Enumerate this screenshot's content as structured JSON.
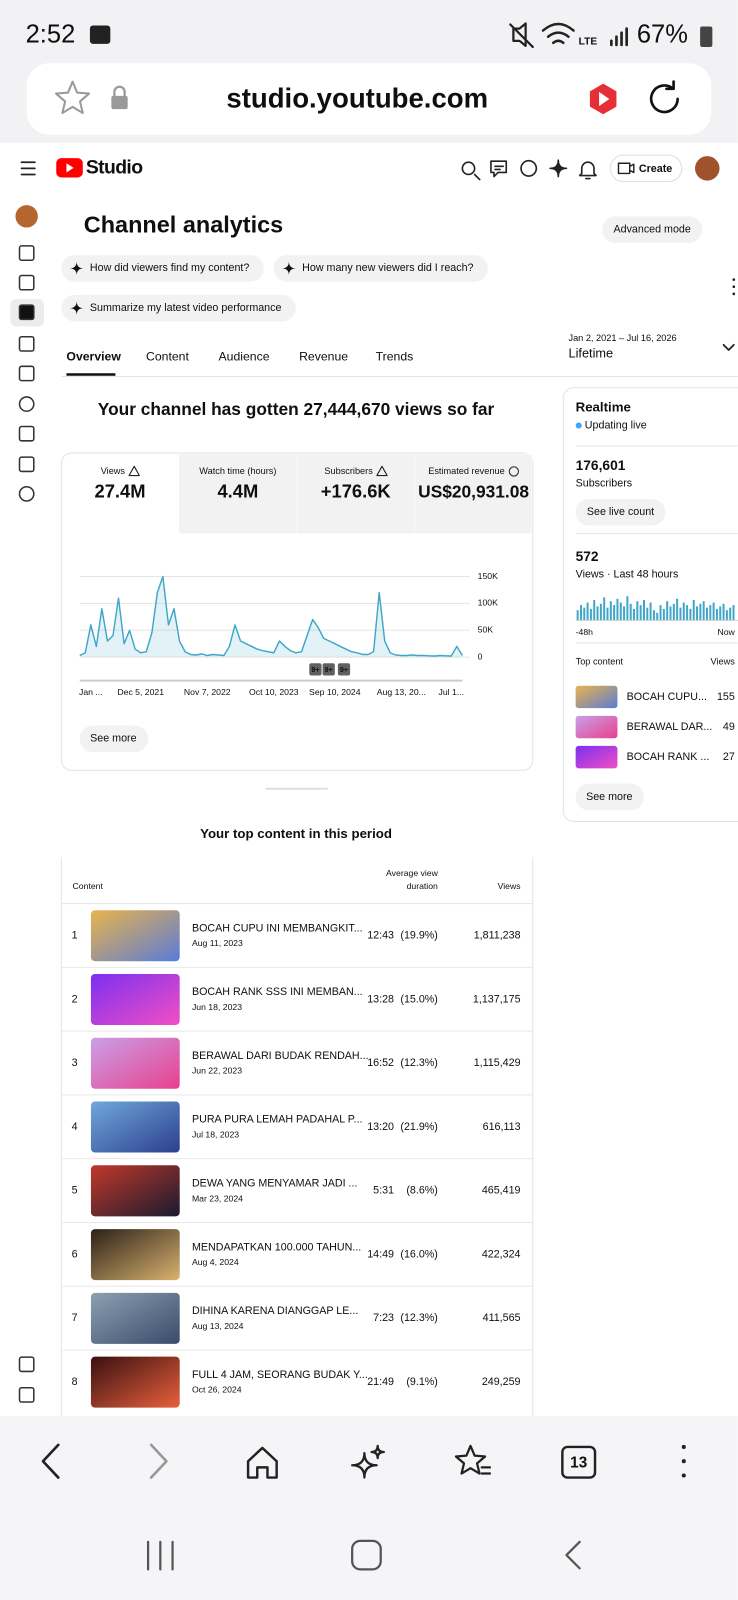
{
  "status_bar": {
    "time": "2:52",
    "network_label": "LTE",
    "battery": "67%"
  },
  "browser": {
    "url": "studio.youtube.com",
    "tab_count": "13"
  },
  "header": {
    "brand": "Studio",
    "create": "Create"
  },
  "page": {
    "title": "Channel analytics",
    "advanced_mode": "Advanced mode",
    "prompts": [
      "How did viewers find my content?",
      "How many new viewers did I reach?",
      "Summarize my latest video performance"
    ],
    "tabs": [
      "Overview",
      "Content",
      "Audience",
      "Revenue",
      "Trends"
    ],
    "date_range": "Jan 2, 2021 – Jul 16, 2026",
    "period": "Lifetime",
    "headline": "Your channel has gotten 27,444,670 views so far"
  },
  "metrics": [
    {
      "label": "Views",
      "value": "27.4M"
    },
    {
      "label": "Watch time (hours)",
      "value": "4.4M"
    },
    {
      "label": "Subscribers",
      "value": "+176.6K"
    },
    {
      "label": "Estimated revenue",
      "value": "US$20,931.08"
    }
  ],
  "chart_data": {
    "type": "line",
    "color": "#3ea6c7",
    "categories": [
      null,
      null,
      "Jan ...",
      null,
      null,
      null,
      null,
      null,
      null,
      null,
      null,
      "Dec 5, 2021",
      null,
      null,
      null,
      null,
      null,
      null,
      null,
      null,
      null,
      null,
      null,
      "Nov 7, 2022",
      null,
      null,
      null,
      null,
      null,
      null,
      null,
      null,
      null,
      null,
      null,
      "Oct 10, 2023",
      null,
      null,
      null,
      null,
      null,
      null,
      null,
      null,
      null,
      null,
      "Sep 10, 2024",
      null,
      null,
      null,
      null,
      null,
      null,
      null,
      null,
      null,
      null,
      null,
      "Aug 13, 20...",
      null,
      null,
      null,
      null,
      null,
      null,
      null,
      null,
      "Jul 1...",
      null,
      null
    ],
    "values": [
      3000,
      8000,
      60000,
      20000,
      90000,
      30000,
      40000,
      110000,
      25000,
      50000,
      15000,
      8000,
      10000,
      45000,
      120000,
      150000,
      60000,
      90000,
      30000,
      10000,
      5000,
      4000,
      6000,
      3000,
      5000,
      4000,
      3000,
      20000,
      60000,
      30000,
      25000,
      20000,
      15000,
      12000,
      10000,
      8000,
      30000,
      20000,
      12000,
      8000,
      10000,
      40000,
      70000,
      55000,
      35000,
      30000,
      25000,
      20000,
      15000,
      10000,
      8000,
      5000,
      5000,
      10000,
      120000,
      30000,
      8000,
      4000,
      3000,
      3000,
      4000,
      3000,
      3000,
      2500,
      2000,
      3000,
      2500,
      2000,
      20000,
      3000
    ],
    "ylim": [
      0,
      150000
    ],
    "yticks": [
      0,
      {
        "value": 50000,
        "label": "50K"
      },
      {
        "value": 100000,
        "label": "100K"
      },
      {
        "value": 150000,
        "label": "150K"
      }
    ],
    "grid": true
  },
  "chart_badges": [
    "9+",
    "9+",
    "9+"
  ],
  "see_more": "See more",
  "realtime": {
    "title": "Realtime",
    "status": "Updating live",
    "subscribers": "176,601",
    "subscribers_label": "Subscribers",
    "live_count": "See live count",
    "views": "572",
    "views_label": "Views · Last 48 hours",
    "bars": [
      8,
      12,
      10,
      14,
      9,
      16,
      11,
      13,
      18,
      10,
      15,
      12,
      17,
      14,
      11,
      19,
      13,
      9,
      15,
      12,
      16,
      10,
      14,
      8,
      6,
      12,
      9,
      15,
      11,
      13,
      17,
      10,
      14,
      12,
      9,
      16,
      11,
      13,
      15,
      10,
      12,
      14,
      9,
      11,
      13,
      8,
      10,
      12
    ],
    "start_label": "-48h",
    "end_label": "Now",
    "top_content_label": "Top content",
    "views_header": "Views",
    "top": [
      {
        "title": "BOCAH CUPU...",
        "views": "155"
      },
      {
        "title": "BERAWAL DAR...",
        "views": "49"
      },
      {
        "title": "BOCAH RANK ...",
        "views": "27"
      }
    ],
    "see_more": "See more"
  },
  "top_content": {
    "title": "Your top content in this period",
    "columns": {
      "content": "Content",
      "avg_duration": [
        "Average view",
        "duration"
      ],
      "views": "Views"
    },
    "rows": [
      {
        "rank": "1",
        "title": "BOCAH CUPU INI MEMBANGKIT...",
        "date": "Aug 11, 2023",
        "duration": "12:43",
        "share": "(19.9%)",
        "views": "1,811,238"
      },
      {
        "rank": "2",
        "title": "BOCAH RANK SSS INI MEMBAN...",
        "date": "Jun 18, 2023",
        "duration": "13:28",
        "share": "(15.0%)",
        "views": "1,137,175"
      },
      {
        "rank": "3",
        "title": "BERAWAL DARI BUDAK RENDAH...",
        "date": "Jun 22, 2023",
        "duration": "16:52",
        "share": "(12.3%)",
        "views": "1,115,429"
      },
      {
        "rank": "4",
        "title": "PURA PURA LEMAH PADAHAL P...",
        "date": "Jul 18, 2023",
        "duration": "13:20",
        "share": "(21.9%)",
        "views": "616,113"
      },
      {
        "rank": "5",
        "title": "DEWA YANG MENYAMAR JADI ...",
        "date": "Mar 23, 2024",
        "duration": "5:31",
        "share": "(8.6%)",
        "views": "465,419"
      },
      {
        "rank": "6",
        "title": "MENDAPATKAN 100.000 TAHUN...",
        "date": "Aug 4, 2024",
        "duration": "14:49",
        "share": "(16.0%)",
        "views": "422,324"
      },
      {
        "rank": "7",
        "title": "DIHINA KARENA DIANGGAP LE...",
        "date": "Aug 13, 2024",
        "duration": "7:23",
        "share": "(12.3%)",
        "views": "411,565"
      },
      {
        "rank": "8",
        "title": "FULL 4 JAM, SEORANG BUDAK Y...",
        "date": "Oct 26, 2024",
        "duration": "21:49",
        "share": "(9.1%)",
        "views": "249,259"
      }
    ]
  }
}
